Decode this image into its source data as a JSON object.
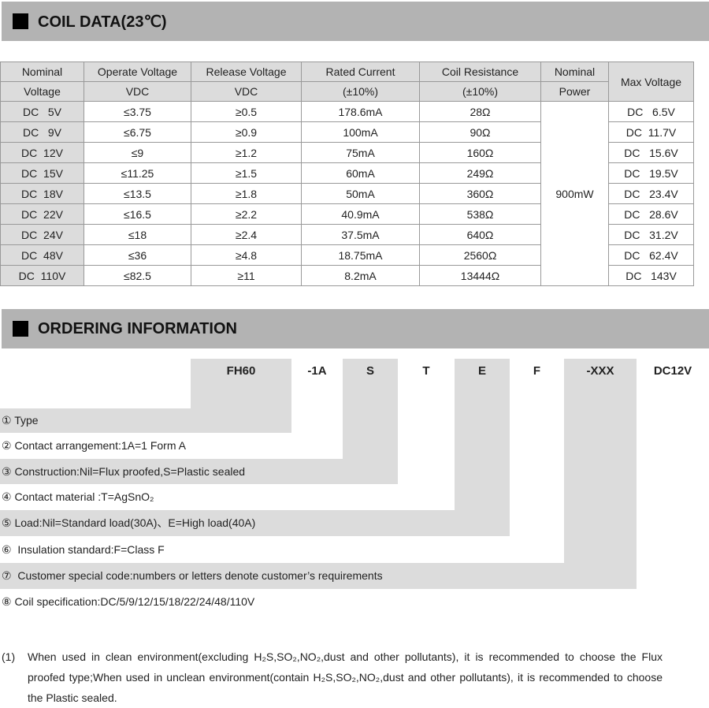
{
  "coil": {
    "title": "COIL DATA(23℃)",
    "headers": [
      [
        "Nominal",
        "Voltage"
      ],
      [
        "Operate Voltage",
        "VDC"
      ],
      [
        "Release Voltage",
        "VDC"
      ],
      [
        "Rated Current",
        "(±10%)"
      ],
      [
        "Coil Resistance",
        "(±10%)"
      ],
      [
        "Nominal",
        "Power"
      ],
      [
        "Max Voltage",
        ""
      ]
    ],
    "rows": [
      [
        "DC   5V",
        "≤3.75",
        "≥0.5",
        "178.6mA",
        "28Ω",
        "DC   6.5V"
      ],
      [
        "DC   9V",
        "≤6.75",
        "≥0.9",
        "100mA",
        "90Ω",
        "DC  11.7V"
      ],
      [
        "DC  12V",
        "≤9",
        "≥1.2",
        "75mA",
        "160Ω",
        "DC   15.6V"
      ],
      [
        "DC  15V",
        "≤11.25",
        "≥1.5",
        "60mA",
        "249Ω",
        "DC   19.5V"
      ],
      [
        "DC  18V",
        "≤13.5",
        "≥1.8",
        "50mA",
        "360Ω",
        "DC   23.4V"
      ],
      [
        "DC  22V",
        "≤16.5",
        "≥2.2",
        "40.9mA",
        "538Ω",
        "DC   28.6V"
      ],
      [
        "DC  24V",
        "≤18",
        "≥2.4",
        "37.5mA",
        "640Ω",
        "DC   31.2V"
      ],
      [
        "DC  48V",
        "≤36",
        "≥4.8",
        "18.75mA",
        "2560Ω",
        "DC   62.4V"
      ],
      [
        "DC  110V",
        "≤82.5",
        "≥11",
        "8.2mA",
        "13444Ω",
        "DC   143V"
      ]
    ],
    "power": "900mW"
  },
  "ordering": {
    "title": "ORDERING INFORMATION",
    "codes": [
      "FH60",
      "-1A",
      "S",
      "T",
      "E",
      "F",
      "-XXX",
      "DC12V"
    ],
    "items": [
      "① Type",
      "② Contact arrangement:1A=1 Form A",
      "③ Construction:Nil=Flux proofed,S=Plastic sealed",
      "④ Contact material :T=AgSnO₂",
      "⑤ Load:Nil=Standard load(30A)、E=High load(40A)",
      "⑥  Insulation standard:F=Class F",
      "⑦  Customer special code:numbers or letters denote customer’s requirements",
      "⑧ Coil specification:DC/5/9/12/15/18/22/24/48/110V"
    ]
  },
  "notes": [
    {
      "num": "(1)",
      "text": "When used in clean environment(excluding H₂S,SO₂,NO₂,dust and other pollutants), it is recommended to choose the Flux proofed type;When used in unclean environment(contain H₂S,SO₂,NO₂,dust and other pollutants), it is recommended to choose the Plastic sealed."
    }
  ]
}
